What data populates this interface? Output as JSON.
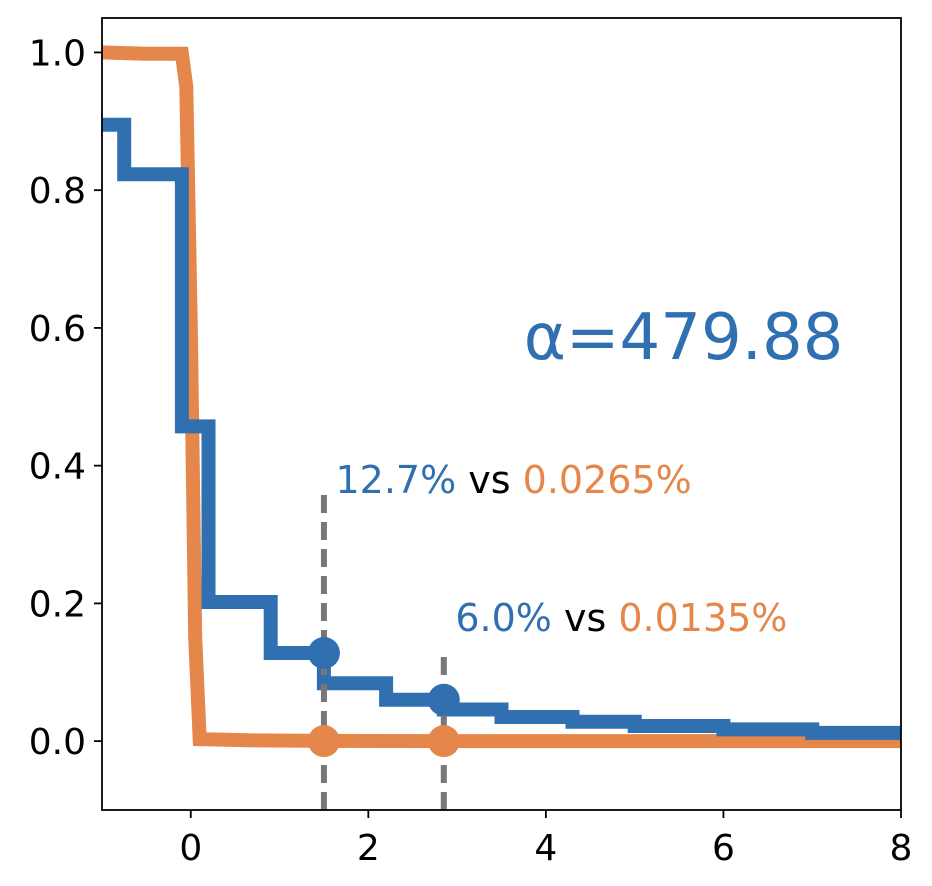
{
  "chart_data": {
    "type": "line",
    "title": "",
    "xlabel": "",
    "ylabel": "",
    "xlim": [
      -1,
      8
    ],
    "ylim": [
      -0.1,
      1.05
    ],
    "grid": false,
    "x_ticks": [
      0,
      2,
      4,
      6,
      8
    ],
    "y_ticks": [
      0.0,
      0.2,
      0.4,
      0.6,
      0.8,
      1.0
    ],
    "x_tick_labels": [
      "0",
      "2",
      "4",
      "6",
      "8"
    ],
    "y_tick_labels": [
      "0.0",
      "0.2",
      "0.4",
      "0.6",
      "0.8",
      "1.0"
    ],
    "colors": {
      "blue": "#3070b0",
      "orange": "#e5874a",
      "dash": "#777777",
      "axis": "#000000"
    },
    "series": [
      {
        "name": "blue",
        "color": "#3070b0",
        "step": true,
        "x": [
          -1.0,
          -0.75,
          -0.75,
          -0.1,
          -0.1,
          0.2,
          0.2,
          0.9,
          0.9,
          1.5,
          1.5,
          2.2,
          2.2,
          2.85,
          2.85,
          3.5,
          3.5,
          4.3,
          4.3,
          5.0,
          5.0,
          6.0,
          6.0,
          7.0,
          7.0,
          8.0
        ],
        "y": [
          0.895,
          0.895,
          0.823,
          0.823,
          0.457,
          0.457,
          0.202,
          0.202,
          0.128,
          0.128,
          0.084,
          0.084,
          0.06,
          0.06,
          0.046,
          0.046,
          0.035,
          0.035,
          0.028,
          0.028,
          0.022,
          0.022,
          0.017,
          0.017,
          0.012,
          0.012
        ]
      },
      {
        "name": "orange",
        "color": "#e5874a",
        "step": false,
        "x": [
          -1.0,
          -0.5,
          -0.1,
          -0.05,
          0.0,
          0.05,
          0.1,
          0.7,
          1.5,
          2.85,
          8.0
        ],
        "y": [
          1.0,
          0.998,
          0.998,
          0.95,
          0.6,
          0.15,
          0.003,
          0.001,
          0.0003,
          0.0001,
          0.0
        ]
      }
    ],
    "markers": [
      {
        "series": "blue",
        "x": 1.5,
        "y": 0.128
      },
      {
        "series": "orange",
        "x": 1.5,
        "y": 0.0
      },
      {
        "series": "blue",
        "x": 2.85,
        "y": 0.06
      },
      {
        "series": "orange",
        "x": 2.85,
        "y": 0.0
      }
    ],
    "vlines": [
      {
        "x": 1.5,
        "ymin": -0.1,
        "ymax": 0.36
      },
      {
        "x": 2.85,
        "ymin": -0.1,
        "ymax": 0.13
      }
    ],
    "annotations": [
      {
        "x": 1.63,
        "y": 0.36,
        "blue_text": "12.7%",
        "mid_text": " vs ",
        "orange_text": "0.0265%"
      },
      {
        "x": 2.98,
        "y": 0.16,
        "blue_text": "6.0%",
        "mid_text": " vs ",
        "orange_text": "0.0135%"
      }
    ],
    "alpha_label": {
      "text": "α=479.88",
      "x": 3.75,
      "y": 0.555
    }
  }
}
